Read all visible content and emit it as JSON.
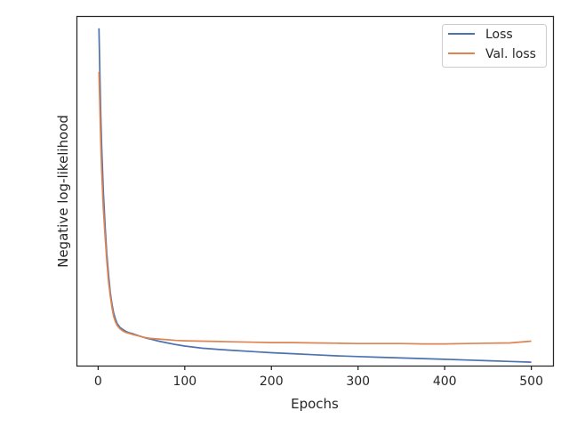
{
  "chart_data": {
    "type": "line",
    "title": "",
    "xlabel": "Epochs",
    "ylabel": "Negative log-likelihood",
    "xlim": [
      -25,
      525
    ],
    "ylim": [
      0,
      1
    ],
    "x_ticks": [
      0,
      100,
      200,
      300,
      400,
      500
    ],
    "x_tick_labels": [
      "0",
      "100",
      "200",
      "300",
      "400",
      "500"
    ],
    "y_ticks": [],
    "grid": false,
    "legend_position": "top-right",
    "series": [
      {
        "name": "Loss",
        "color": "#4c72b0",
        "x": [
          1,
          2,
          3,
          4,
          6,
          8,
          10,
          12,
          14,
          16,
          18,
          20,
          22,
          25,
          28,
          32,
          36,
          40,
          45,
          50,
          55,
          60,
          70,
          80,
          90,
          100,
          120,
          140,
          160,
          180,
          200,
          225,
          250,
          275,
          300,
          325,
          350,
          375,
          400,
          425,
          450,
          475,
          500
        ],
        "y": [
          0.965,
          0.84,
          0.72,
          0.63,
          0.5,
          0.4,
          0.32,
          0.26,
          0.21,
          0.175,
          0.15,
          0.133,
          0.12,
          0.11,
          0.104,
          0.098,
          0.094,
          0.091,
          0.087,
          0.083,
          0.079,
          0.076,
          0.07,
          0.065,
          0.06,
          0.056,
          0.05,
          0.046,
          0.043,
          0.04,
          0.037,
          0.034,
          0.031,
          0.028,
          0.026,
          0.024,
          0.022,
          0.02,
          0.018,
          0.016,
          0.014,
          0.012,
          0.01
        ]
      },
      {
        "name": "Val. loss",
        "color": "#dd8452",
        "x": [
          1,
          2,
          3,
          4,
          6,
          8,
          10,
          12,
          14,
          16,
          18,
          20,
          22,
          25,
          28,
          32,
          36,
          40,
          45,
          50,
          55,
          60,
          70,
          80,
          90,
          100,
          120,
          140,
          160,
          180,
          200,
          225,
          250,
          275,
          300,
          325,
          350,
          375,
          400,
          425,
          450,
          475,
          500
        ],
        "y": [
          0.84,
          0.74,
          0.64,
          0.56,
          0.45,
          0.37,
          0.3,
          0.24,
          0.2,
          0.165,
          0.14,
          0.125,
          0.115,
          0.106,
          0.1,
          0.095,
          0.092,
          0.089,
          0.086,
          0.083,
          0.08,
          0.078,
          0.076,
          0.074,
          0.072,
          0.071,
          0.07,
          0.069,
          0.068,
          0.067,
          0.066,
          0.066,
          0.065,
          0.064,
          0.063,
          0.063,
          0.063,
          0.062,
          0.062,
          0.063,
          0.064,
          0.065,
          0.07
        ]
      }
    ]
  }
}
